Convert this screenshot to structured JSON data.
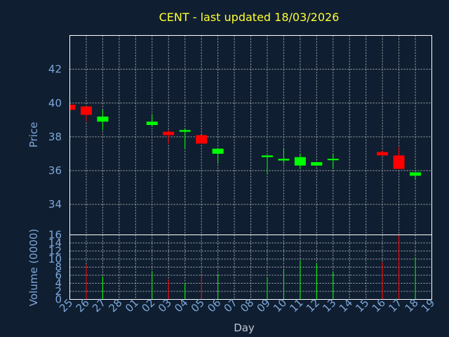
{
  "chart_data": {
    "type": "candlestick",
    "title": "CENT - last updated 18/03/2026",
    "xlabel": "Day",
    "price_ylabel": "Price",
    "volume_ylabel": "Volume (0000)",
    "price_ylim": [
      32.2,
      44.0
    ],
    "price_yticks": [
      34,
      36,
      38,
      40,
      42
    ],
    "volume_ylim": [
      0,
      16
    ],
    "volume_yticks": [
      0,
      2,
      4,
      6,
      8,
      10,
      12,
      14,
      16
    ],
    "x_tick_labels": [
      "25",
      "26",
      "27",
      "28",
      "01",
      "02",
      "03",
      "04",
      "05",
      "06",
      "07",
      "08",
      "09",
      "10",
      "11",
      "12",
      "13",
      "14",
      "15",
      "16",
      "17",
      "18",
      "19"
    ],
    "colors": {
      "up": "#00ff00",
      "down": "#ff0000",
      "background": "#0f1e30",
      "title": "#ffff33",
      "axis": "#7da7d9"
    },
    "candles": [
      {
        "day": "25",
        "open": 39.9,
        "close": 39.6,
        "high": 39.9,
        "low": 39.6,
        "volume": 0
      },
      {
        "day": "26",
        "open": 39.8,
        "close": 39.3,
        "high": 39.8,
        "low": 38.9,
        "volume": 8.6
      },
      {
        "day": "27",
        "open": 38.9,
        "close": 39.2,
        "high": 39.6,
        "low": 38.4,
        "volume": 5.7
      },
      {
        "day": "02",
        "open": 38.7,
        "close": 38.9,
        "high": 39.3,
        "low": 38.6,
        "volume": 7.0
      },
      {
        "day": "03",
        "open": 38.3,
        "close": 38.1,
        "high": 38.4,
        "low": 37.6,
        "volume": 5.0
      },
      {
        "day": "04",
        "open": 38.3,
        "close": 38.4,
        "high": 38.5,
        "low": 37.3,
        "volume": 4.0
      },
      {
        "day": "05",
        "open": 38.1,
        "close": 37.6,
        "high": 38.1,
        "low": 37.6,
        "volume": 5.9
      },
      {
        "day": "06",
        "open": 37.0,
        "close": 37.3,
        "high": 37.3,
        "low": 36.4,
        "volume": 6.3
      },
      {
        "day": "09",
        "open": 36.8,
        "close": 36.9,
        "high": 36.9,
        "low": 35.8,
        "volume": 5.5
      },
      {
        "day": "10",
        "open": 36.6,
        "close": 36.7,
        "high": 37.3,
        "low": 36.4,
        "volume": 7.3
      },
      {
        "day": "11",
        "open": 36.3,
        "close": 36.8,
        "high": 37.0,
        "low": 36.1,
        "volume": 9.7
      },
      {
        "day": "12",
        "open": 36.3,
        "close": 36.5,
        "high": 36.5,
        "low": 36.3,
        "volume": 9.0
      },
      {
        "day": "13",
        "open": 36.7,
        "close": 36.7,
        "high": 37.0,
        "low": 36.1,
        "volume": 6.9
      },
      {
        "day": "16",
        "open": 37.1,
        "close": 36.9,
        "high": 37.2,
        "low": 36.9,
        "volume": 9.2
      },
      {
        "day": "17",
        "open": 36.9,
        "close": 36.1,
        "high": 37.4,
        "low": 36.1,
        "volume": 16.0
      },
      {
        "day": "18",
        "open": 35.7,
        "close": 35.9,
        "high": 35.9,
        "low": 35.5,
        "volume": 10.5
      }
    ]
  }
}
